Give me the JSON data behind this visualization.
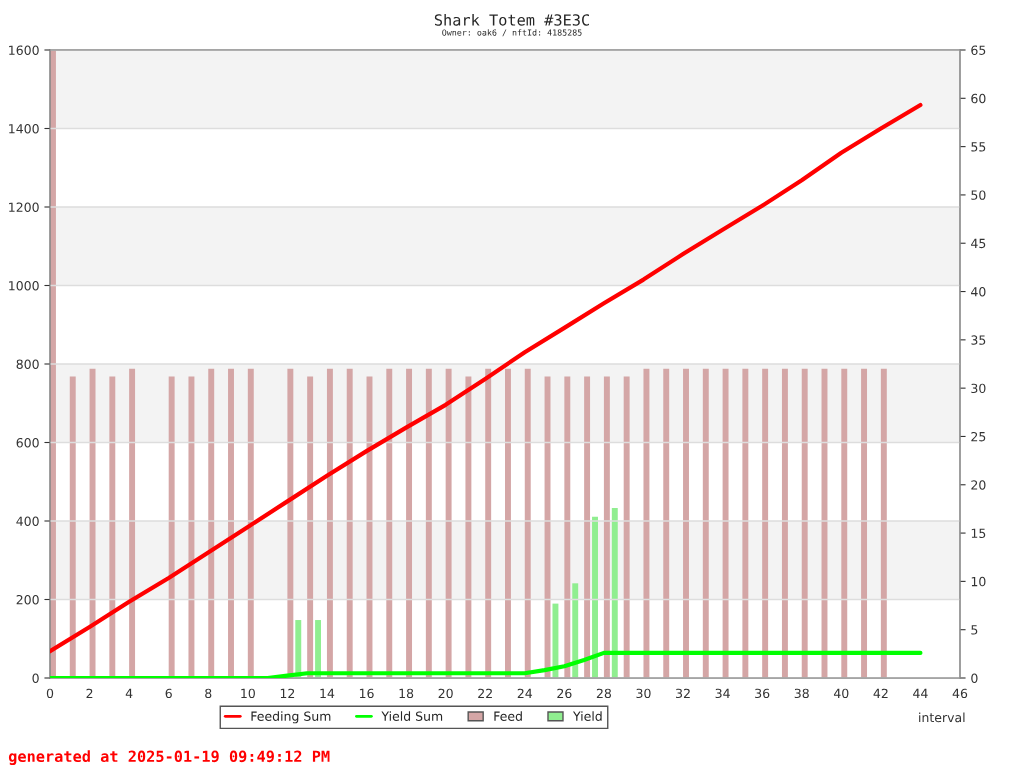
{
  "chart_data": {
    "type": "bar",
    "title": "Shark Totem #3E3C",
    "subtitle": "Owner: oak6 / nftId: 4185285",
    "xlabel": "interval",
    "annotations": [
      "generated at 2025-01-19 09:49:12 PM"
    ],
    "xlim": [
      0,
      46
    ],
    "xticks": [
      0,
      2,
      4,
      6,
      8,
      10,
      12,
      14,
      16,
      18,
      20,
      22,
      24,
      26,
      28,
      30,
      32,
      34,
      36,
      38,
      40,
      42,
      44,
      46
    ],
    "ylim": [
      0,
      1600
    ],
    "yticks": [
      0,
      200,
      400,
      600,
      800,
      1000,
      1200,
      1400,
      1600
    ],
    "y2lim": [
      0,
      65
    ],
    "y2ticks": [
      0,
      5,
      10,
      15,
      20,
      25,
      30,
      35,
      40,
      45,
      50,
      55,
      60,
      65
    ],
    "grid": "y",
    "legend": "bottom",
    "series": [
      {
        "name": "Feeding Sum",
        "type": "line",
        "color": "#ff0000",
        "x": [
          0,
          2,
          4,
          6,
          8,
          10,
          12,
          14,
          16,
          18,
          20,
          22,
          24,
          26,
          28,
          30,
          32,
          34,
          36,
          38,
          40,
          42,
          44
        ],
        "values": [
          68,
          130,
          194,
          255,
          320,
          385,
          450,
          515,
          578,
          638,
          696,
          762,
          830,
          892,
          955,
          1015,
          1080,
          1142,
          1203,
          1268,
          1338,
          1400,
          1460
        ]
      },
      {
        "name": "Yield Sum",
        "type": "line",
        "color": "#00ff00",
        "x": [
          0,
          11,
          12,
          13,
          24,
          25,
          26,
          27,
          28,
          44
        ],
        "values": [
          0,
          0,
          6,
          12,
          12,
          20,
          30,
          46,
          64,
          64
        ]
      },
      {
        "name": "Feed",
        "axis": "y2",
        "color": "#d4a6a6",
        "x": [
          0,
          1,
          2,
          3,
          4,
          6,
          7,
          8,
          9,
          10,
          12,
          13,
          14,
          15,
          16,
          17,
          18,
          19,
          20,
          21,
          22,
          23,
          24,
          25,
          26,
          27,
          28,
          29,
          30,
          31,
          32,
          33,
          34,
          35,
          36,
          37,
          38,
          39,
          40,
          41,
          42
        ],
        "values": [
          65,
          31.2,
          32,
          31.2,
          32,
          31.2,
          31.2,
          32,
          32,
          32,
          32,
          31.2,
          32,
          32,
          31.2,
          32,
          32,
          32,
          32,
          31.2,
          32,
          32,
          32,
          31.2,
          31.2,
          31.2,
          31.2,
          31.2,
          32,
          32,
          32,
          32,
          32,
          32,
          32,
          32,
          32,
          32,
          32,
          32,
          32
        ]
      },
      {
        "name": "Yield",
        "axis": "y2",
        "color": "#90ee90",
        "x": [
          12,
          13,
          25,
          26,
          27,
          28
        ],
        "values": [
          6,
          6,
          7.7,
          9.8,
          16.7,
          17.6
        ]
      }
    ]
  }
}
